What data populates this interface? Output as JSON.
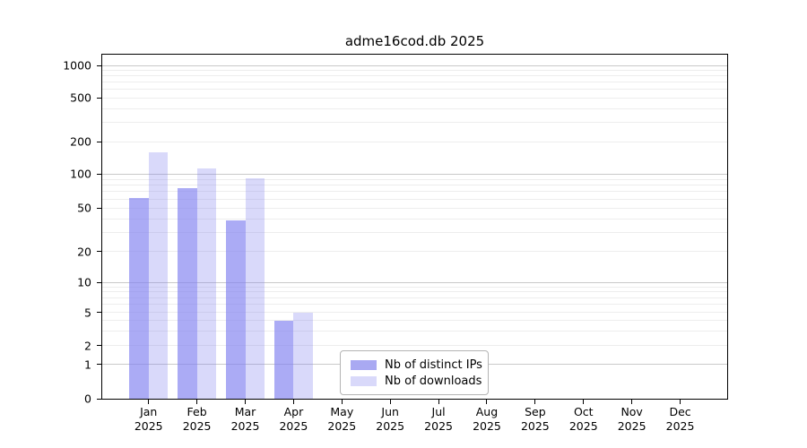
{
  "page": {
    "background": "#ffffff",
    "text_color": "#000000"
  },
  "chart_data": {
    "type": "bar",
    "title": "adme16cod.db 2025",
    "categories": [
      "Jan",
      "Feb",
      "Mar",
      "Apr",
      "May",
      "Jun",
      "Jul",
      "Aug",
      "Sep",
      "Oct",
      "Nov",
      "Dec"
    ],
    "year": "2025",
    "series": [
      {
        "name": "Nb of distinct IPs",
        "fill": "rgba(128,128,240,0.66)",
        "legend_color": "#a9a9f2",
        "values": [
          62,
          75,
          39,
          4,
          0,
          0,
          0,
          0,
          0,
          0,
          0,
          0
        ]
      },
      {
        "name": "Nb of downloads",
        "fill": "rgba(128,128,240,0.30)",
        "legend_color": "#d9d9fa",
        "values": [
          160,
          112,
          92,
          5,
          0,
          0,
          0,
          0,
          0,
          0,
          0,
          0
        ]
      }
    ],
    "y_ticks": [
      0,
      1,
      2,
      5,
      10,
      20,
      50,
      100,
      200,
      500,
      1000
    ],
    "ylim": [
      0,
      1300
    ],
    "yscale": "log (with 0 baseline)",
    "xlabel": "",
    "ylabel": "",
    "grid": true,
    "legend_position": "inside lower-center",
    "grid_minor_color": "#ededed",
    "grid_major_color": "#c9c9c9"
  }
}
